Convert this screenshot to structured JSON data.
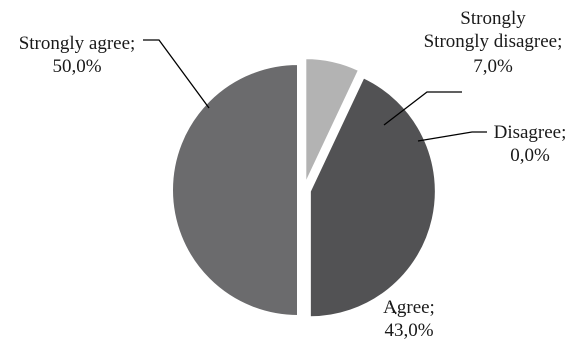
{
  "chart_data": {
    "type": "pie",
    "title": "",
    "slices": [
      {
        "label": "Strongly disagree;",
        "value": "7,0%",
        "fraction": 0.07,
        "color": "#b3b3b3"
      },
      {
        "label": "Disagree;",
        "value": "0,0%",
        "fraction": 0.0,
        "color": "#8c8c8c"
      },
      {
        "label": "Agree;",
        "value": "43,0%",
        "fraction": 0.43,
        "color": "#525254"
      },
      {
        "label": "Strongly agree;",
        "value": "50,0%",
        "fraction": 0.5,
        "color": "#6b6b6d"
      }
    ],
    "start_angle": "from the top, clockwise",
    "legend": "none (inline labels with leader lines)"
  }
}
